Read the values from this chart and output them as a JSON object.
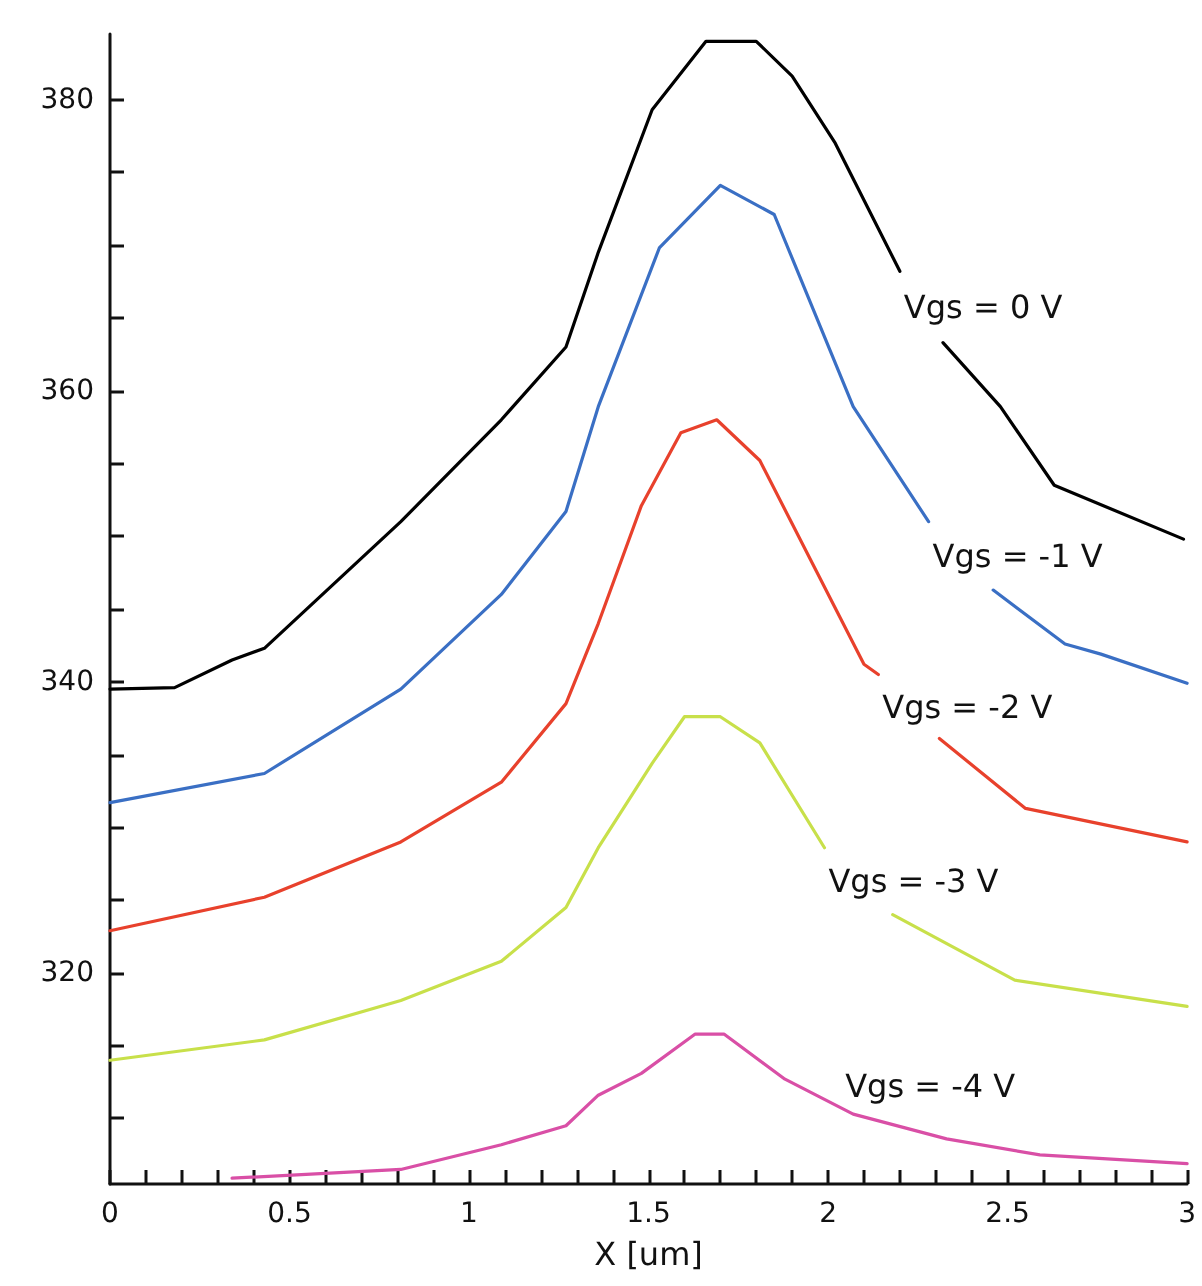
{
  "chart_data": {
    "type": "line",
    "xlabel": "X [um]",
    "xlim": [
      0,
      3
    ],
    "ylim": [
      305.5,
      384.5
    ],
    "xticks": [
      0,
      {
        "value": 0.1,
        "label": null
      },
      {
        "value": 0.2,
        "label": null
      },
      {
        "value": 0.3,
        "label": null
      },
      {
        "value": 0.4,
        "label": null
      },
      0.5,
      {
        "value": 0.6,
        "label": null
      },
      {
        "value": 0.7,
        "label": null
      },
      {
        "value": 0.8,
        "label": null
      },
      {
        "value": 0.9,
        "label": null
      },
      1,
      {
        "value": 1.1,
        "label": null
      },
      {
        "value": 1.2,
        "label": null
      },
      {
        "value": 1.3,
        "label": null
      },
      {
        "value": 1.4,
        "label": null
      },
      1.5,
      {
        "value": 1.6,
        "label": null
      },
      {
        "value": 1.7,
        "label": null
      },
      {
        "value": 1.8,
        "label": null
      },
      {
        "value": 1.9,
        "label": null
      },
      2,
      {
        "value": 2.1,
        "label": null
      },
      {
        "value": 2.2,
        "label": null
      },
      {
        "value": 2.3,
        "label": null
      },
      {
        "value": 2.4,
        "label": null
      },
      2.5,
      {
        "value": 2.6,
        "label": null
      },
      {
        "value": 2.7,
        "label": null
      },
      {
        "value": 2.8,
        "label": null
      },
      {
        "value": 2.9,
        "label": null
      },
      3
    ],
    "yticks": [
      {
        "value": 310,
        "label": null
      },
      {
        "value": 315,
        "label": null
      },
      320,
      {
        "value": 325,
        "label": null
      },
      {
        "value": 330,
        "label": null
      },
      {
        "value": 335,
        "label": null
      },
      340,
      {
        "value": 345,
        "label": null
      },
      {
        "value": 350,
        "label": null
      },
      {
        "value": 355,
        "label": null
      },
      360,
      {
        "value": 365,
        "label": null
      },
      {
        "value": 370,
        "label": null
      },
      {
        "value": 375,
        "label": null
      },
      380
    ],
    "grid": false,
    "legend": false,
    "marker": "none",
    "line_style": "solid",
    "series": [
      {
        "name": "Vgs = 0 V",
        "color": "#000000",
        "x": [
          0,
          0.18,
          0.34,
          0.43,
          0.81,
          1.09,
          1.27,
          1.36,
          1.51,
          1.66,
          1.8,
          1.9,
          2.02,
          2.2,
          2.26,
          2.32,
          2.48,
          2.63,
          2.99
        ],
        "values": [
          339.5,
          339.6,
          341.5,
          342.3,
          351,
          358,
          363,
          369.5,
          379.3,
          384,
          384,
          381.6,
          377,
          368.2,
          null,
          363.3,
          358.9,
          353.5,
          349.8
        ]
      },
      {
        "name": "Vgs = -1 V",
        "color": "#3a6fc4",
        "x": [
          0,
          0.43,
          0.81,
          1.09,
          1.27,
          1.36,
          1.53,
          1.7,
          1.85,
          2.07,
          2.28,
          2.37,
          2.46,
          2.66,
          2.76,
          3
        ],
        "values": [
          331.7,
          333.7,
          339.5,
          346,
          351.7,
          358.9,
          369.8,
          374.1,
          372.1,
          358.9,
          351,
          null,
          346.3,
          342.6,
          341.9,
          339.9
        ]
      },
      {
        "name": "Vgs = -2 V",
        "color": "#e8412c",
        "x": [
          0,
          0.43,
          0.81,
          1.09,
          1.27,
          1.36,
          1.48,
          1.59,
          1.69,
          1.81,
          2.1,
          2.14,
          2.22,
          2.31,
          2.55,
          3
        ],
        "values": [
          322.9,
          325.2,
          329,
          333.1,
          338.5,
          344,
          352.1,
          357.1,
          358,
          355.2,
          341.2,
          340.5,
          null,
          336.1,
          331.3,
          329
        ]
      },
      {
        "name": "Vgs = -3 V",
        "color": "#c8e04a",
        "x": [
          0,
          0.43,
          0.81,
          1.09,
          1.27,
          1.36,
          1.51,
          1.6,
          1.7,
          1.81,
          1.99,
          2.08,
          2.18,
          2.52,
          3
        ],
        "values": [
          314,
          315.4,
          318.1,
          320.8,
          324.5,
          328.6,
          334.4,
          337.6,
          337.6,
          335.8,
          328.6,
          null,
          324,
          319.5,
          317.7
        ]
      },
      {
        "name": "Vgs = -4 V",
        "color": "#d94fa6",
        "x": [
          0.34,
          0.81,
          1.09,
          1.27,
          1.36,
          1.48,
          1.63,
          1.71,
          1.88,
          2.07,
          2.33,
          2.59,
          3
        ],
        "values": [
          305.9,
          306.5,
          308.2,
          309.5,
          311.6,
          313.1,
          315.8,
          315.8,
          312.7,
          310.3,
          308.6,
          307.5,
          306.9
        ]
      }
    ]
  }
}
